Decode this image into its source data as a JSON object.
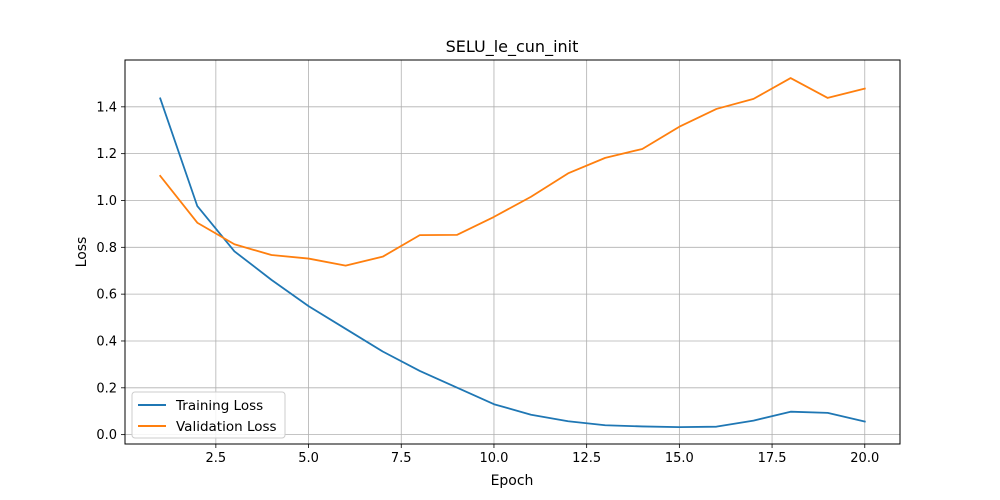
{
  "chart_data": {
    "type": "line",
    "title": "SELU_le_cun_init",
    "xlabel": "Epoch",
    "ylabel": "Loss",
    "xlim": [
      0.05,
      20.95
    ],
    "ylim": [
      -0.04,
      1.6
    ],
    "xticks": [
      2.5,
      5.0,
      7.5,
      10.0,
      12.5,
      15.0,
      17.5,
      20.0
    ],
    "xtick_labels": [
      "2.5",
      "5.0",
      "7.5",
      "10.0",
      "12.5",
      "15.0",
      "17.5",
      "20.0"
    ],
    "yticks": [
      0.0,
      0.2,
      0.4,
      0.6,
      0.8,
      1.0,
      1.2,
      1.4
    ],
    "ytick_labels": [
      "0.0",
      "0.2",
      "0.4",
      "0.6",
      "0.8",
      "1.0",
      "1.2",
      "1.4"
    ],
    "grid": true,
    "legend_position": "lower-left",
    "x": [
      1,
      2,
      3,
      4,
      5,
      6,
      7,
      8,
      9,
      10,
      11,
      12,
      13,
      14,
      15,
      16,
      17,
      18,
      19,
      20
    ],
    "series": [
      {
        "name": "Training Loss",
        "color": "#1f77b4",
        "values": [
          1.436,
          0.976,
          0.783,
          0.661,
          0.549,
          0.452,
          0.355,
          0.272,
          0.201,
          0.13,
          0.085,
          0.057,
          0.04,
          0.035,
          0.032,
          0.034,
          0.06,
          0.098,
          0.093,
          0.056
        ]
      },
      {
        "name": "Validation Loss",
        "color": "#ff7f0e",
        "values": [
          1.105,
          0.905,
          0.813,
          0.767,
          0.752,
          0.722,
          0.76,
          0.852,
          0.853,
          0.93,
          1.016,
          1.116,
          1.182,
          1.22,
          1.315,
          1.391,
          1.434,
          1.523,
          1.438,
          1.478
        ]
      }
    ]
  }
}
